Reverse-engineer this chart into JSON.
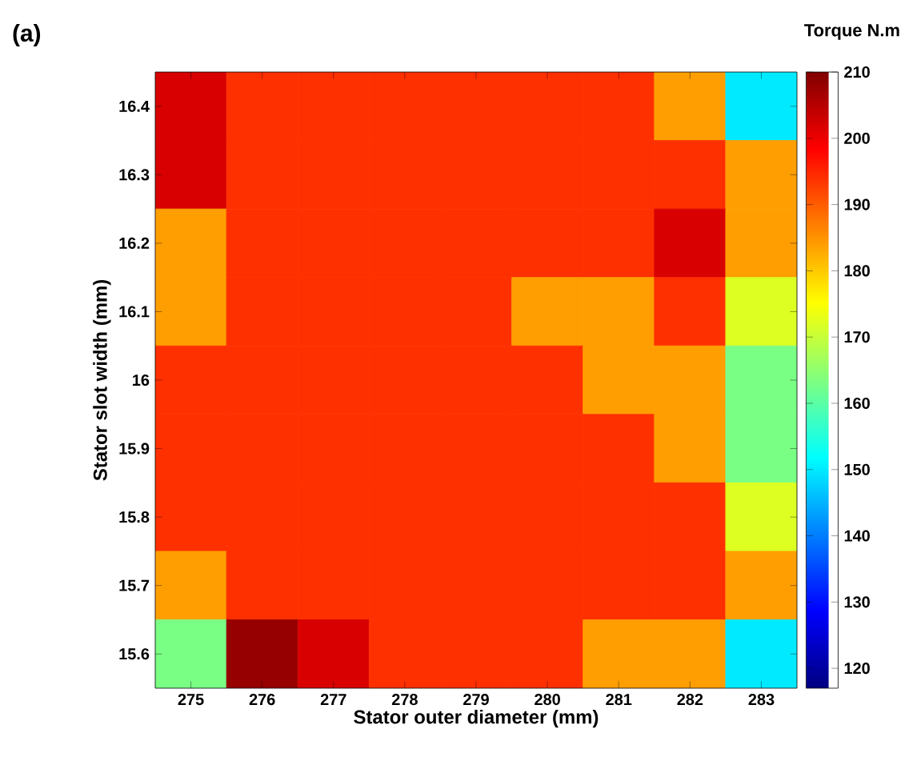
{
  "chart_data": {
    "type": "heatmap",
    "title": "(a)",
    "xlabel": "Stator outer diameter (mm)",
    "ylabel": "Stator slot width (mm)",
    "clabel": "Torque N.m",
    "categories": [
      "275",
      "276",
      "277",
      "278",
      "279",
      "280",
      "281",
      "282",
      "283"
    ],
    "y_categories": [
      "16.4",
      "16.3",
      "16.2",
      "16.1",
      "16",
      "15.9",
      "15.8",
      "15.7",
      "15.6"
    ],
    "cells": [
      [
        202,
        194,
        194,
        194,
        194,
        194,
        194,
        184,
        150
      ],
      [
        202,
        194,
        194,
        194,
        194,
        194,
        194,
        194,
        184
      ],
      [
        184,
        194,
        194,
        194,
        194,
        194,
        194,
        202,
        184
      ],
      [
        184,
        194,
        194,
        194,
        194,
        184,
        184,
        194,
        172
      ],
      [
        194,
        194,
        194,
        194,
        194,
        194,
        184,
        184,
        163
      ],
      [
        194,
        194,
        194,
        194,
        194,
        194,
        194,
        184,
        163
      ],
      [
        194,
        194,
        194,
        194,
        194,
        194,
        194,
        194,
        172
      ],
      [
        184,
        194,
        194,
        194,
        194,
        194,
        194,
        194,
        184
      ],
      [
        163,
        208,
        202,
        194,
        194,
        194,
        184,
        184,
        150
      ]
    ],
    "clim": [
      117,
      210
    ],
    "cticks": [
      120,
      130,
      140,
      150,
      160,
      170,
      180,
      190,
      200,
      210
    ]
  }
}
